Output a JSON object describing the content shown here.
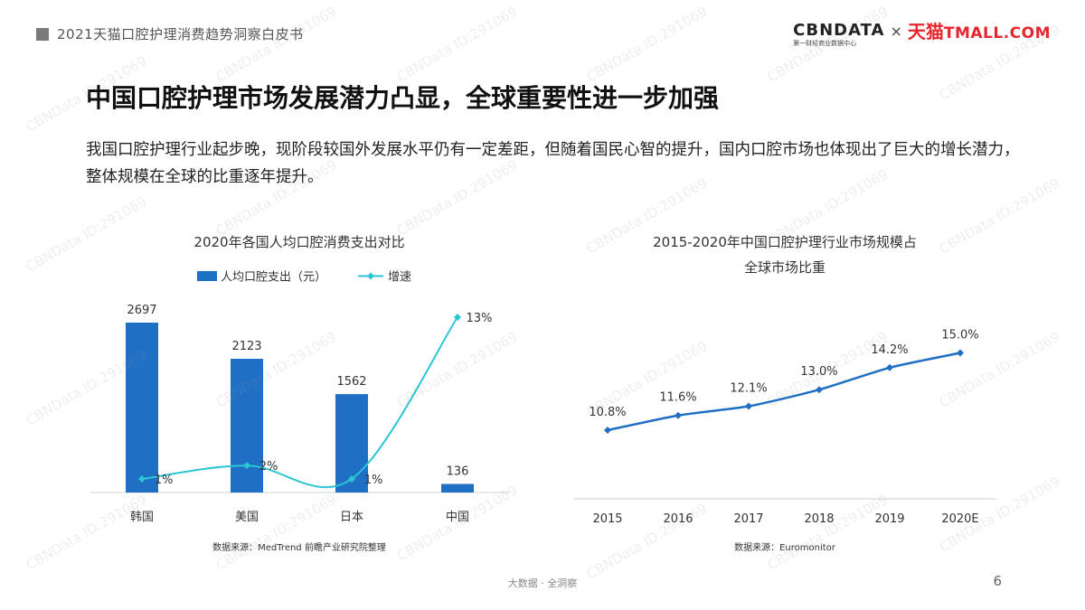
{
  "header": {
    "report_title": "2021天猫口腔护理消费趋势洞察白皮书",
    "logo_cbn": "CBNDATA",
    "logo_cbn_sub": "第一财经商业数据中心",
    "logo_times": "×",
    "logo_tmall_cn": "天猫",
    "logo_tmall_en": "TMALL.COM"
  },
  "main": {
    "title": "中国口腔护理市场发展潜力凸显，全球重要性进一步加强",
    "description": "我国口腔护理行业起步晚，现阶段较国外发展水平仍有一定差距，但随着国民心智的提升，国内口腔市场也体现出了巨大的增长潜力，整体规模在全球的比重逐年提升。"
  },
  "footer": {
    "brand": "大数据 · 全洞察",
    "page_number": "6"
  },
  "watermark": "CBNData ID:291069",
  "chart_data": [
    {
      "type": "bar",
      "title": "2020年各国人均口腔消费支出对比",
      "categories": [
        "韩国",
        "美国",
        "日本",
        "中国"
      ],
      "series": [
        {
          "name": "人均口腔支出（元）",
          "values": [
            2697,
            2123,
            1562,
            136
          ],
          "labels": [
            "2697",
            "2123",
            "1562",
            "136"
          ],
          "color": "#1f6fc5"
        },
        {
          "name": "增速",
          "type": "line",
          "values": [
            1,
            2,
            1,
            13
          ],
          "labels": [
            "1%",
            "2%",
            "1%",
            "13%"
          ],
          "color": "#2bc6d6"
        }
      ],
      "source": "数据来源：MedTrend 前瞻产业研究院整理"
    },
    {
      "type": "line",
      "title": "2015-2020年中国口腔护理行业市场规模占全球市场比重",
      "categories": [
        "2015",
        "2016",
        "2017",
        "2018",
        "2019",
        "2020E"
      ],
      "series": [
        {
          "values": [
            10.8,
            11.6,
            12.1,
            13.0,
            14.2,
            15.0
          ],
          "labels": [
            "10.8%",
            "11.6%",
            "12.1%",
            "13.0%",
            "14.2%",
            "15.0%"
          ],
          "color": "#1f6fc5"
        }
      ],
      "source": "数据来源：Euromonitor"
    }
  ],
  "colors": {
    "bar": "#1f6fc5",
    "growth_line": "#2bc6d6",
    "share_line": "#1f6fc5"
  }
}
